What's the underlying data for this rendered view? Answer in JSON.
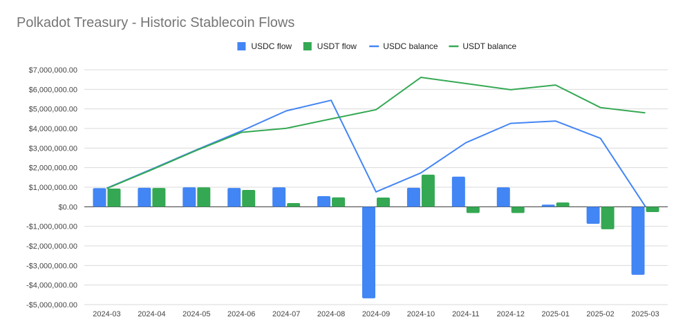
{
  "chart_data": {
    "type": "bar",
    "title": "Polkadot Treasury - Historic Stablecoin Flows",
    "categories": [
      "2024-03",
      "2024-04",
      "2024-05",
      "2024-06",
      "2024-07",
      "2024-08",
      "2024-09",
      "2024-10",
      "2024-11",
      "2024-12",
      "2025-01",
      "2025-02",
      "2025-03"
    ],
    "ylim": [
      -5000000,
      7000000
    ],
    "yticks": [
      7000000,
      6000000,
      5000000,
      4000000,
      3000000,
      2000000,
      1000000,
      0,
      -1000000,
      -2000000,
      -3000000,
      -4000000,
      -5000000
    ],
    "ytick_labels": [
      "$7,000,000.00",
      "$6,000,000.00",
      "$5,000,000.00",
      "$4,000,000.00",
      "$3,000,000.00",
      "$2,000,000.00",
      "$1,000,000.00",
      "$0.00",
      "-$1,000,000.00",
      "-$2,000,000.00",
      "-$3,000,000.00",
      "-$4,000,000.00",
      "-$5,000,000.00"
    ],
    "grid": true,
    "legend_position": "top",
    "series": [
      {
        "name": "USDC flow",
        "kind": "bar",
        "color": "#4285f4",
        "values": [
          950000,
          970000,
          990000,
          960000,
          990000,
          540000,
          -4680000,
          970000,
          1540000,
          990000,
          110000,
          -870000,
          -3480000
        ]
      },
      {
        "name": "USDT flow",
        "kind": "bar",
        "color": "#34a853",
        "values": [
          930000,
          960000,
          990000,
          860000,
          190000,
          480000,
          470000,
          1640000,
          -320000,
          -320000,
          220000,
          -1150000,
          -270000
        ]
      },
      {
        "name": "USDC balance",
        "kind": "line",
        "color": "#4285f4",
        "values": [
          950000,
          1920000,
          2910000,
          3870000,
          4900000,
          5440000,
          760000,
          1730000,
          3270000,
          4260000,
          4380000,
          3500000,
          20000
        ]
      },
      {
        "name": "USDT balance",
        "kind": "line",
        "color": "#34a853",
        "values": [
          930000,
          1890000,
          2880000,
          3800000,
          4010000,
          4490000,
          4960000,
          6610000,
          6300000,
          5980000,
          6220000,
          5070000,
          4800000
        ]
      }
    ]
  }
}
